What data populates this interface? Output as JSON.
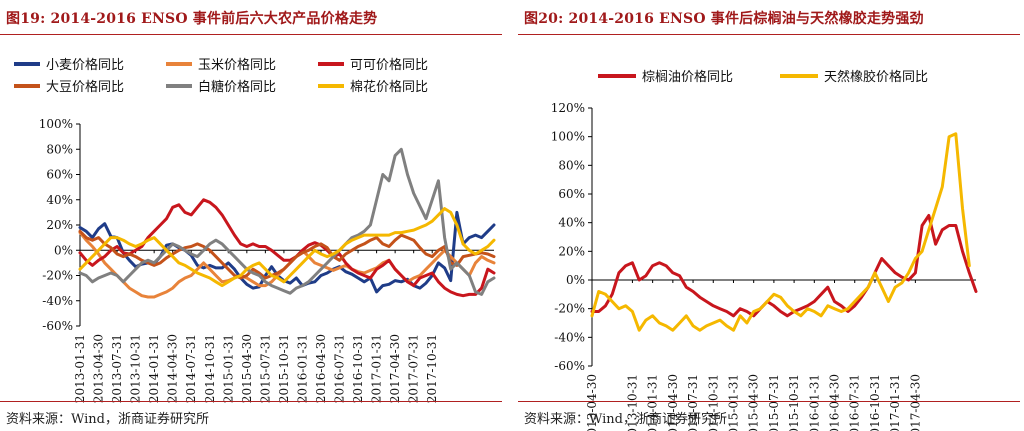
{
  "panels": [
    {
      "fig_title": "图19:   2014-2016 ENSO 事件前后六大农产品价格走势",
      "source": "资料来源：Wind，浙商证券研究所"
    },
    {
      "fig_title": "图20:   2014-2016 ENSO 事件后棕榈油与天然橡胶走势强劲",
      "source": "资料来源：Wind，浙商证券研究所"
    }
  ],
  "chart_data": [
    {
      "type": "line",
      "title": "",
      "xlabel": "",
      "ylabel": "",
      "ylim": [
        -60,
        100
      ],
      "yticks": [
        -60,
        -40,
        -20,
        0,
        20,
        40,
        60,
        80,
        100
      ],
      "ytick_format": "percent",
      "grid": false,
      "legend": "top",
      "x_start": "2013-01",
      "x_step_months": 1,
      "tick_labels": [
        "2013-01-31",
        "2013-04-30",
        "2013-07-31",
        "2013-10-31",
        "2014-01-31",
        "2014-04-30",
        "2014-07-31",
        "2014-10-31",
        "2015-01-31",
        "2015-04-30",
        "2015-07-31",
        "2015-10-31",
        "2016-01-31",
        "2016-04-30",
        "2016-07-31",
        "2016-10-31",
        "2017-01-31",
        "2017-04-30",
        "2017-07-31",
        "2017-10-31"
      ],
      "series": [
        {
          "name": "小麦价格同比",
          "color": "#1f3c88",
          "values": [
            18,
            15,
            10,
            17,
            21,
            11,
            10,
            -2,
            -8,
            -13,
            -11,
            -10,
            -11,
            -5,
            4,
            5,
            2,
            0,
            -4,
            -12,
            -14,
            -12,
            -14,
            -14,
            -10,
            -15,
            -22,
            -27,
            -30,
            -29,
            -20,
            -13,
            -20,
            -24,
            -26,
            -22,
            -28,
            -26,
            -25,
            -20,
            -18,
            -15,
            -13,
            -17,
            -19,
            -22,
            -25,
            -22,
            -33,
            -28,
            -27,
            -24,
            -25,
            -23,
            -28,
            -30,
            -26,
            -20,
            -10,
            -14,
            -24,
            30,
            5,
            10,
            12,
            10,
            15,
            20
          ]
        },
        {
          "name": "玉米价格同比",
          "color": "#e8833a",
          "values": [
            14,
            8,
            3,
            -3,
            -10,
            -15,
            -20,
            -25,
            -30,
            -33,
            -36,
            -37,
            -37,
            -35,
            -33,
            -30,
            -25,
            -22,
            -20,
            -15,
            -10,
            -15,
            -20,
            -25,
            -24,
            -22,
            -20,
            -22,
            -25,
            -28,
            -28,
            -25,
            -20,
            -15,
            -10,
            -5,
            0,
            -5,
            -10,
            -12,
            -14,
            -16,
            -14,
            -12,
            -15,
            -17,
            -18,
            -16,
            -14,
            -10,
            -8,
            -15,
            -20,
            -25,
            -22,
            -20,
            -15,
            -10,
            -5,
            0,
            -5,
            -10,
            -15,
            -20,
            -10,
            -5,
            -8,
            -10
          ]
        },
        {
          "name": "可可价格同比",
          "color": "#c8161d",
          "values": [
            -2,
            -8,
            -12,
            -8,
            -5,
            0,
            3,
            -2,
            -3,
            0,
            3,
            10,
            15,
            20,
            25,
            34,
            36,
            30,
            28,
            34,
            40,
            38,
            34,
            28,
            20,
            12,
            5,
            3,
            5,
            3,
            3,
            0,
            -4,
            -8,
            -8,
            -5,
            0,
            4,
            6,
            4,
            0,
            -5,
            -3,
            -10,
            -15,
            -18,
            -20,
            -22,
            -15,
            -12,
            -8,
            -15,
            -20,
            -25,
            -28,
            -22,
            -20,
            -18,
            -25,
            -30,
            -33,
            -35,
            -36,
            -35,
            -35,
            -30,
            -15,
            -18
          ]
        },
        {
          "name": "大豆价格同比",
          "color": "#c4521a",
          "values": [
            15,
            10,
            8,
            10,
            5,
            2,
            -3,
            -5,
            -3,
            -5,
            -8,
            -10,
            -12,
            -10,
            -6,
            -3,
            0,
            2,
            3,
            5,
            3,
            0,
            -5,
            -10,
            -15,
            -20,
            -22,
            -20,
            -15,
            -18,
            -22,
            -20,
            -18,
            -15,
            -10,
            -5,
            -2,
            0,
            3,
            5,
            2,
            -5,
            -8,
            -3,
            0,
            3,
            5,
            8,
            10,
            5,
            3,
            8,
            12,
            10,
            8,
            2,
            -3,
            -5,
            0,
            3,
            -10,
            -12,
            -5,
            -4,
            -3,
            -2,
            -3,
            -5
          ]
        },
        {
          "name": "白糖价格同比",
          "color": "#808080",
          "values": [
            -18,
            -20,
            -25,
            -22,
            -20,
            -18,
            -20,
            -25,
            -20,
            -15,
            -10,
            -8,
            -10,
            -5,
            0,
            5,
            3,
            0,
            -3,
            -5,
            0,
            5,
            8,
            5,
            0,
            -5,
            -10,
            -15,
            -18,
            -20,
            -25,
            -28,
            -30,
            -32,
            -34,
            -30,
            -28,
            -25,
            -20,
            -15,
            -10,
            -5,
            0,
            5,
            10,
            12,
            15,
            20,
            40,
            60,
            55,
            75,
            80,
            60,
            45,
            35,
            25,
            40,
            55,
            10,
            -15,
            -10,
            -15,
            -20,
            -33,
            -35,
            -25,
            -22
          ]
        },
        {
          "name": "棉花价格同比",
          "color": "#f5b800",
          "values": [
            -15,
            -10,
            -5,
            0,
            5,
            10,
            10,
            8,
            5,
            3,
            5,
            8,
            10,
            5,
            0,
            -5,
            -10,
            -12,
            -15,
            -18,
            -20,
            -22,
            -25,
            -28,
            -25,
            -22,
            -20,
            -15,
            -12,
            -10,
            -15,
            -20,
            -22,
            -25,
            -20,
            -15,
            -10,
            -5,
            0,
            -3,
            -5,
            -3,
            0,
            5,
            8,
            10,
            12,
            12,
            12,
            12,
            12,
            14,
            14,
            15,
            16,
            18,
            20,
            23,
            28,
            33,
            30,
            20,
            5,
            0,
            -3,
            0,
            3,
            8
          ]
        }
      ]
    },
    {
      "type": "line",
      "title": "",
      "xlabel": "",
      "ylabel": "",
      "ylim": [
        -60,
        120
      ],
      "yticks": [
        -60,
        -40,
        -20,
        0,
        20,
        40,
        60,
        80,
        100,
        120
      ],
      "ytick_format": "percent",
      "grid": false,
      "legend": "top",
      "x_start": "2013-04",
      "x_step_months": 1,
      "tick_labels": [
        "2013-04-30",
        "2013-10-31",
        "2014-01-31",
        "2014-04-30",
        "2014-07-31",
        "2014-10-31",
        "2015-01-31",
        "2015-04-30",
        "2015-07-31",
        "2015-10-31",
        "2016-01-31",
        "2016-04-30",
        "2016-07-31",
        "2016-10-31",
        "2017-01-31",
        "2017-04-30"
      ],
      "series": [
        {
          "name": "棕榈油价格同比",
          "color": "#c8161d",
          "values": [
            -22,
            -22,
            -18,
            -10,
            5,
            10,
            12,
            0,
            3,
            10,
            12,
            10,
            5,
            3,
            -5,
            -8,
            -12,
            -15,
            -18,
            -20,
            -22,
            -25,
            -20,
            -22,
            -25,
            -20,
            -15,
            -18,
            -22,
            -25,
            -22,
            -20,
            -18,
            -15,
            -10,
            -5,
            -15,
            -18,
            -22,
            -18,
            -12,
            -5,
            5,
            15,
            10,
            5,
            2,
            0,
            5,
            38,
            45,
            25,
            35,
            38,
            38,
            20,
            5,
            -8
          ]
        },
        {
          "name": "天然橡胶价格同比",
          "color": "#f5b800",
          "values": [
            -25,
            -8,
            -10,
            -15,
            -20,
            -18,
            -22,
            -35,
            -28,
            -25,
            -30,
            -32,
            -35,
            -30,
            -25,
            -32,
            -35,
            -32,
            -30,
            -28,
            -32,
            -35,
            -25,
            -30,
            -22,
            -20,
            -15,
            -10,
            -12,
            -18,
            -22,
            -25,
            -20,
            -22,
            -25,
            -18,
            -20,
            -22,
            -20,
            -15,
            -10,
            -5,
            5,
            -5,
            -15,
            -5,
            -2,
            5,
            15,
            20,
            35,
            50,
            65,
            100,
            102,
            50,
            10
          ]
        }
      ]
    }
  ]
}
